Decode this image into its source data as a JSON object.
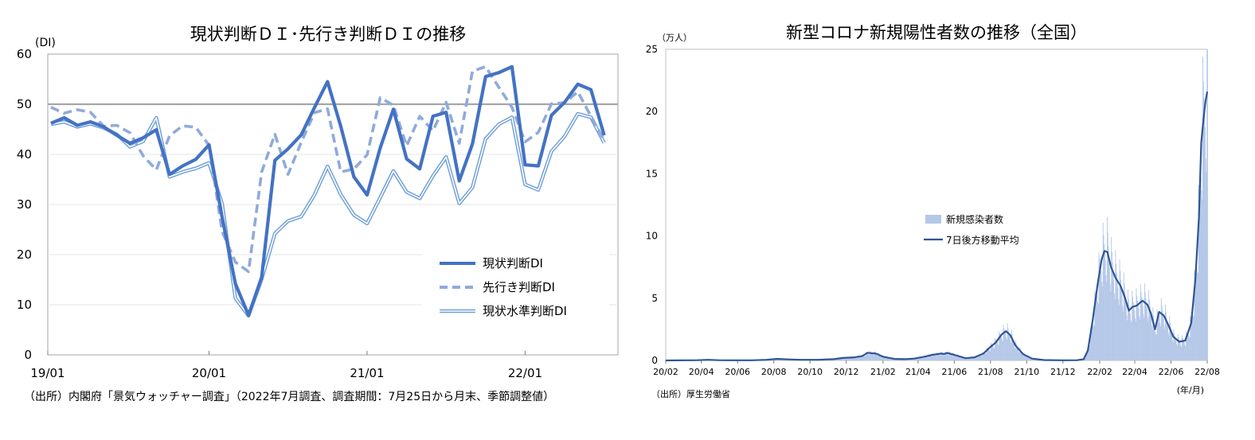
{
  "chart_data": [
    {
      "type": "line",
      "title": "現状判断ＤＩ･先行き判断ＤＩの推移",
      "ylabel": "(DI)",
      "ylim": [
        0,
        60
      ],
      "yticks": [
        "0",
        "10",
        "20",
        "30",
        "40",
        "50",
        "60"
      ],
      "xtick_labels": [
        {
          "month": 1,
          "label": "19/01"
        },
        {
          "month": 13,
          "label": "20/01"
        },
        {
          "month": 25,
          "label": "21/01"
        },
        {
          "month": 37,
          "label": "22/01"
        }
      ],
      "x_start": "2019/01",
      "x_end": "2022/07",
      "reference_line": 50,
      "legend": "bottom-right",
      "source": "（出所）内閣府「景気ウォッチャー調査」（2022年7月調査、調査期間：7月25日から月末、季節調整値）",
      "series": [
        {
          "name": "現状判断DI",
          "color": "#4472c4",
          "style": "solid-thick",
          "values": [
            46.2,
            47.3,
            45.8,
            46.5,
            45.5,
            43.8,
            42.2,
            43.3,
            44.9,
            36.0,
            37.7,
            39.0,
            41.9,
            27.4,
            14.2,
            7.9,
            15.5,
            38.8,
            41.1,
            43.9,
            49.3,
            54.5,
            45.6,
            35.5,
            31.9,
            41.3,
            49.0,
            39.1,
            37.1,
            47.6,
            48.4,
            34.7,
            42.1,
            55.5,
            56.3,
            57.5,
            37.9,
            37.7,
            47.8,
            50.4,
            54.0,
            52.9,
            43.8
          ]
        },
        {
          "name": "先行き判断DI",
          "color": "#8faadc",
          "style": "dashed",
          "values": [
            49.4,
            48.2,
            48.9,
            48.4,
            45.6,
            45.8,
            44.3,
            39.7,
            36.9,
            43.7,
            45.7,
            45.4,
            41.8,
            24.6,
            18.5,
            16.6,
            36.5,
            44.0,
            36.0,
            42.4,
            48.3,
            49.1,
            36.5,
            37.1,
            39.9,
            51.3,
            49.8,
            41.7,
            47.6,
            44.7,
            50.4,
            42.2,
            56.6,
            57.5,
            53.4,
            49.4,
            42.5,
            44.4,
            50.1,
            50.3,
            52.5,
            47.6,
            42.8
          ]
        },
        {
          "name": "現状水準判断DI",
          "color": "#6f9fd8",
          "style": "double",
          "values": [
            46.0,
            46.5,
            45.5,
            46.1,
            45.3,
            44.0,
            41.5,
            42.6,
            47.3,
            35.5,
            36.5,
            37.2,
            38.3,
            30.1,
            11.3,
            7.8,
            15.1,
            24.2,
            26.7,
            27.6,
            31.9,
            37.6,
            32.0,
            27.9,
            26.2,
            31.4,
            36.7,
            32.5,
            31.2,
            35.7,
            39.5,
            30.2,
            33.4,
            43.1,
            46.0,
            47.4,
            34.0,
            32.9,
            40.6,
            43.6,
            48.1,
            47.4,
            42.3
          ]
        }
      ]
    },
    {
      "type": "area",
      "title": "新型コロナ新規陽性者数の推移（全国）",
      "ylabel": "（万人）",
      "xlabel": "(年/月)",
      "ylim": [
        0,
        25
      ],
      "yticks": [
        "0",
        "5",
        "10",
        "15",
        "20",
        "25"
      ],
      "x_start": "2020/02/01",
      "x_end": "2022/08/01",
      "xtick_labels": [
        "20/02",
        "20/04",
        "20/06",
        "20/08",
        "20/10",
        "20/12",
        "21/02",
        "21/04",
        "21/06",
        "21/08",
        "21/10",
        "21/12",
        "22/02",
        "22/04",
        "22/06",
        "22/08"
      ],
      "legend": "center",
      "source": "（出所）厚生労働省",
      "series": [
        {
          "name": "新規感染者数",
          "kind": "bars",
          "color": "#b4c7e7"
        },
        {
          "name": "7日後方移動平均",
          "kind": "line",
          "color": "#2f5597",
          "points": [
            [
              "2020/02/01",
              0
            ],
            [
              "2020/03/25",
              0.02
            ],
            [
              "2020/04/12",
              0.05
            ],
            [
              "2020/04/30",
              0.02
            ],
            [
              "2020/05/20",
              0.01
            ],
            [
              "2020/06/25",
              0.01
            ],
            [
              "2020/07/20",
              0.05
            ],
            [
              "2020/08/07",
              0.13
            ],
            [
              "2020/08/25",
              0.08
            ],
            [
              "2020/09/15",
              0.05
            ],
            [
              "2020/10/15",
              0.05
            ],
            [
              "2020/11/10",
              0.1
            ],
            [
              "2020/11/25",
              0.2
            ],
            [
              "2020/12/15",
              0.25
            ],
            [
              "2020/12/28",
              0.35
            ],
            [
              "2021/01/06",
              0.62
            ],
            [
              "2021/01/12",
              0.58
            ],
            [
              "2021/01/20",
              0.55
            ],
            [
              "2021/02/01",
              0.3
            ],
            [
              "2021/02/20",
              0.12
            ],
            [
              "2021/03/10",
              0.1
            ],
            [
              "2021/03/25",
              0.15
            ],
            [
              "2021/04/10",
              0.28
            ],
            [
              "2021/04/25",
              0.45
            ],
            [
              "2021/05/10",
              0.55
            ],
            [
              "2021/05/15",
              0.52
            ],
            [
              "2021/05/20",
              0.6
            ],
            [
              "2021/06/01",
              0.45
            ],
            [
              "2021/06/20",
              0.18
            ],
            [
              "2021/07/05",
              0.25
            ],
            [
              "2021/07/20",
              0.55
            ],
            [
              "2021/07/31",
              1.05
            ],
            [
              "2021/08/10",
              1.45
            ],
            [
              "2021/08/20",
              2.1
            ],
            [
              "2021/08/27",
              2.35
            ],
            [
              "2021/09/03",
              2.05
            ],
            [
              "2021/09/12",
              1.2
            ],
            [
              "2021/09/25",
              0.5
            ],
            [
              "2021/10/10",
              0.15
            ],
            [
              "2021/10/30",
              0.03
            ],
            [
              "2021/11/30",
              0.01
            ],
            [
              "2021/12/25",
              0.02
            ],
            [
              "2022/01/05",
              0.1
            ],
            [
              "2022/01/12",
              0.8
            ],
            [
              "2022/01/20",
              3.2
            ],
            [
              "2022/01/28",
              6.0
            ],
            [
              "2022/02/04",
              8.1
            ],
            [
              "2022/02/09",
              8.8
            ],
            [
              "2022/02/14",
              8.7
            ],
            [
              "2022/02/20",
              7.5
            ],
            [
              "2022/02/28",
              6.6
            ],
            [
              "2022/03/08",
              6.0
            ],
            [
              "2022/03/15",
              5.1
            ],
            [
              "2022/03/22",
              4.0
            ],
            [
              "2022/03/28",
              4.3
            ],
            [
              "2022/04/04",
              4.4
            ],
            [
              "2022/04/14",
              4.8
            ],
            [
              "2022/04/22",
              4.5
            ],
            [
              "2022/04/28",
              3.8
            ],
            [
              "2022/05/05",
              2.5
            ],
            [
              "2022/05/12",
              3.9
            ],
            [
              "2022/05/20",
              3.6
            ],
            [
              "2022/05/28",
              2.8
            ],
            [
              "2022/06/05",
              1.9
            ],
            [
              "2022/06/15",
              1.5
            ],
            [
              "2022/06/25",
              1.6
            ],
            [
              "2022/07/05",
              3.0
            ],
            [
              "2022/07/12",
              6.5
            ],
            [
              "2022/07/18",
              11.5
            ],
            [
              "2022/07/22",
              17.5
            ],
            [
              "2022/07/26",
              19.5
            ],
            [
              "2022/07/29",
              20.8
            ],
            [
              "2022/08/01",
              21.6
            ]
          ]
        }
      ]
    }
  ]
}
